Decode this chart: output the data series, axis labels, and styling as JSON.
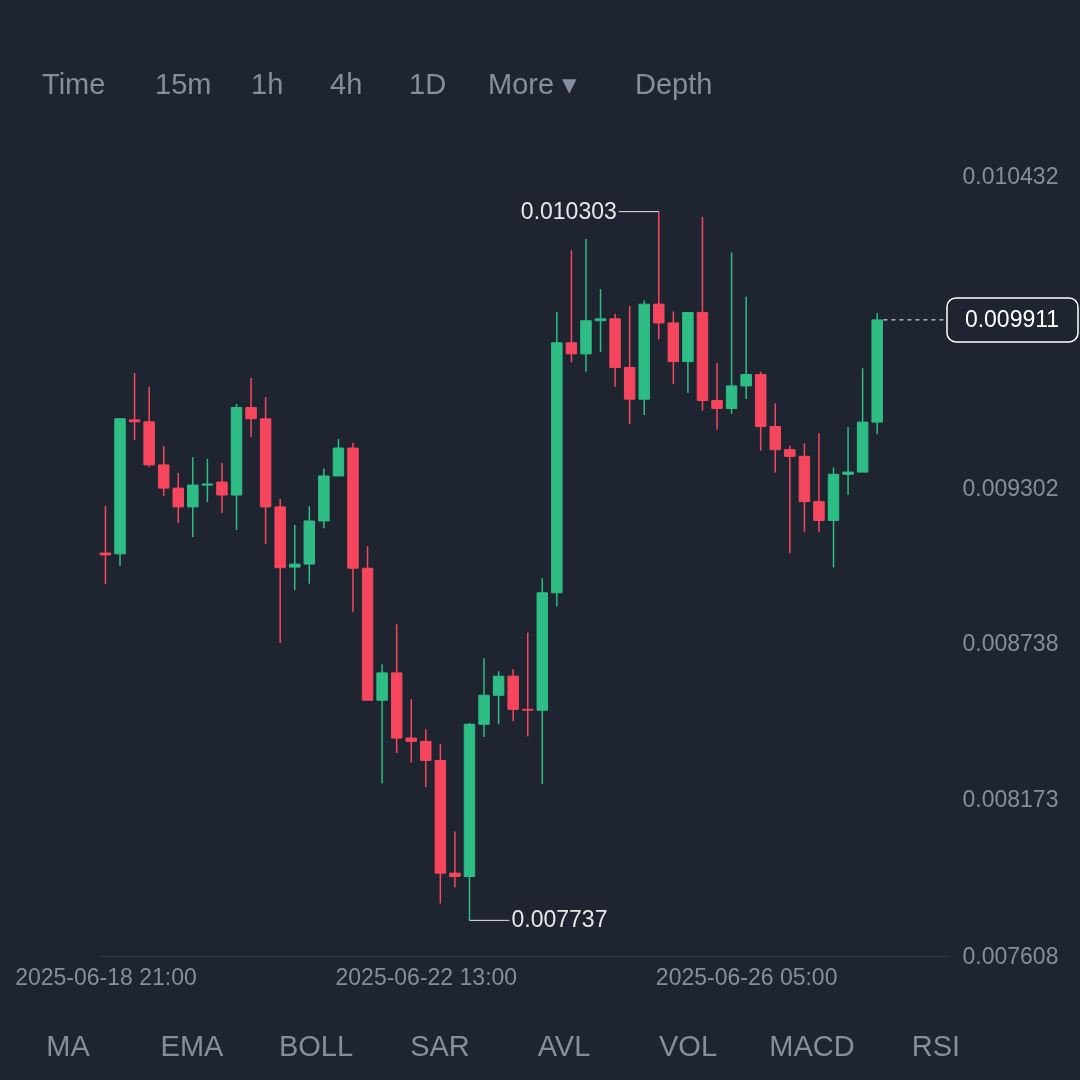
{
  "chart_data": [
    {
      "type": "other",
      "annotations": [
        "Time",
        "15m",
        "1h",
        "4h",
        "1D",
        "More ▾",
        "Depth"
      ]
    },
    {
      "type": "candlestick",
      "x": [
        "2025-06-18T21:00",
        "2025-06-19T01:00",
        "2025-06-19T05:00",
        "2025-06-19T09:00",
        "2025-06-19T13:00",
        "2025-06-19T17:00",
        "2025-06-19T21:00",
        "2025-06-20T01:00",
        "2025-06-20T05:00",
        "2025-06-20T09:00",
        "2025-06-20T13:00",
        "2025-06-20T17:00",
        "2025-06-20T21:00",
        "2025-06-21T01:00",
        "2025-06-21T05:00",
        "2025-06-21T09:00",
        "2025-06-21T13:00",
        "2025-06-21T17:00",
        "2025-06-21T21:00",
        "2025-06-22T01:00",
        "2025-06-22T05:00",
        "2025-06-22T09:00",
        "2025-06-22T13:00",
        "2025-06-22T17:00",
        "2025-06-22T21:00",
        "2025-06-23T01:00",
        "2025-06-23T05:00",
        "2025-06-23T09:00",
        "2025-06-23T13:00",
        "2025-06-23T17:00",
        "2025-06-23T21:00",
        "2025-06-24T01:00",
        "2025-06-24T05:00",
        "2025-06-24T09:00",
        "2025-06-24T13:00",
        "2025-06-24T17:00",
        "2025-06-24T21:00",
        "2025-06-25T01:00",
        "2025-06-25T05:00",
        "2025-06-25T09:00",
        "2025-06-25T13:00",
        "2025-06-25T17:00",
        "2025-06-25T21:00",
        "2025-06-26T01:00",
        "2025-06-26T05:00",
        "2025-06-26T09:00",
        "2025-06-26T13:00",
        "2025-06-26T17:00",
        "2025-06-26T21:00",
        "2025-06-27T01:00",
        "2025-06-27T05:00",
        "2025-06-27T09:00",
        "2025-06-27T13:00",
        "2025-06-27T17:00"
      ],
      "ohlc": [
        [
          0.009067,
          0.009237,
          0.008954,
          0.00906
        ],
        [
          0.009064,
          0.009553,
          0.00902,
          0.009553
        ],
        [
          0.009549,
          0.009719,
          0.009476,
          0.009542
        ],
        [
          0.009542,
          0.009669,
          0.009379,
          0.009386
        ],
        [
          0.009386,
          0.009455,
          0.009273,
          0.009302
        ],
        [
          0.009302,
          0.009357,
          0.009176,
          0.009234
        ],
        [
          0.009234,
          0.009415,
          0.009125,
          0.009313
        ],
        [
          0.009313,
          0.009408,
          0.009252,
          0.009317
        ],
        [
          0.009324,
          0.009393,
          0.009212,
          0.009277
        ],
        [
          0.009277,
          0.009607,
          0.00915,
          0.009594
        ],
        [
          0.009594,
          0.009701,
          0.009487,
          0.009553
        ],
        [
          0.009553,
          0.009632,
          0.009099,
          0.009234
        ],
        [
          0.009234,
          0.009263,
          0.008741,
          0.009014
        ],
        [
          0.009016,
          0.009168,
          0.008933,
          0.009027
        ],
        [
          0.009027,
          0.009237,
          0.008956,
          0.009183
        ],
        [
          0.009183,
          0.009373,
          0.009157,
          0.009346
        ],
        [
          0.009346,
          0.00948,
          0.009346,
          0.009447
        ],
        [
          0.009447,
          0.009466,
          0.008853,
          0.009012
        ],
        [
          0.009012,
          0.009092,
          0.008534,
          0.008534
        ],
        [
          0.008534,
          0.008664,
          0.008233,
          0.008633
        ],
        [
          0.008633,
          0.008809,
          0.008343,
          0.008397
        ],
        [
          0.008397,
          0.008538,
          0.008309,
          0.008385
        ],
        [
          0.008385,
          0.008429,
          0.00822,
          0.008316
        ],
        [
          0.008316,
          0.008375,
          0.007798,
          0.007908
        ],
        [
          0.007908,
          0.008059,
          0.007857,
          0.007896
        ],
        [
          0.007896,
          0.008452,
          0.007737,
          0.008447
        ],
        [
          0.008447,
          0.008686,
          0.008401,
          0.008552
        ],
        [
          0.008552,
          0.008639,
          0.008447,
          0.008621
        ],
        [
          0.008621,
          0.008646,
          0.008458,
          0.008501
        ],
        [
          0.008501,
          0.008779,
          0.008403,
          0.008498
        ],
        [
          0.008498,
          0.008976,
          0.00823,
          0.008923
        ],
        [
          0.008923,
          0.00994,
          0.008873,
          0.009828
        ],
        [
          0.009828,
          0.010163,
          0.009757,
          0.009788
        ],
        [
          0.009788,
          0.010204,
          0.009723,
          0.009908
        ],
        [
          0.009908,
          0.010022,
          0.009795,
          0.009915
        ],
        [
          0.009915,
          0.009933,
          0.009669,
          0.009739
        ],
        [
          0.009739,
          0.009961,
          0.009534,
          0.009624
        ],
        [
          0.009624,
          0.009981,
          0.009567,
          0.009968
        ],
        [
          0.009968,
          0.010303,
          0.00984,
          0.0099
        ],
        [
          0.0099,
          0.009942,
          0.009679,
          0.00976
        ],
        [
          0.00976,
          0.009938,
          0.009646,
          0.009938
        ],
        [
          0.009938,
          0.010284,
          0.009583,
          0.009619
        ],
        [
          0.009619,
          0.009755,
          0.009514,
          0.00959
        ],
        [
          0.00959,
          0.010155,
          0.009571,
          0.009672
        ],
        [
          0.009672,
          0.009995,
          0.009625,
          0.009713
        ],
        [
          0.009713,
          0.009723,
          0.009438,
          0.009525
        ],
        [
          0.009525,
          0.009609,
          0.009358,
          0.009441
        ],
        [
          0.009441,
          0.009455,
          0.009066,
          0.009417
        ],
        [
          0.009417,
          0.009464,
          0.009143,
          0.009253
        ],
        [
          0.009253,
          0.009501,
          0.009142,
          0.009185
        ],
        [
          0.009185,
          0.009377,
          0.009015,
          0.009352
        ],
        [
          0.009352,
          0.009522,
          0.009278,
          0.00936
        ],
        [
          0.00936,
          0.009736,
          0.00936,
          0.009541
        ],
        [
          0.009541,
          0.009936,
          0.009497,
          0.009911
        ]
      ],
      "colors": [
        "#f6465d",
        "#2ebd85",
        "#f6465d",
        "#f6465d",
        "#f6465d",
        "#f6465d",
        "#2ebd85",
        "#2ebd85",
        "#f6465d",
        "#2ebd85",
        "#f6465d",
        "#f6465d",
        "#f6465d",
        "#2ebd85",
        "#2ebd85",
        "#2ebd85",
        "#2ebd85",
        "#f6465d",
        "#f6465d",
        "#2ebd85",
        "#f6465d",
        "#f6465d",
        "#f6465d",
        "#f6465d",
        "#f6465d",
        "#2ebd85",
        "#2ebd85",
        "#2ebd85",
        "#f6465d",
        "#f6465d",
        "#2ebd85",
        "#2ebd85",
        "#f6465d",
        "#2ebd85",
        "#2ebd85",
        "#f6465d",
        "#f6465d",
        "#2ebd85",
        "#f6465d",
        "#f6465d",
        "#2ebd85",
        "#f6465d",
        "#f6465d",
        "#2ebd85",
        "#2ebd85",
        "#f6465d",
        "#f6465d",
        "#f6465d",
        "#f6465d",
        "#f6465d",
        "#2ebd85",
        "#2ebd85",
        "#2ebd85",
        "#2ebd85"
      ],
      "xlim": [
        "2025-06-18T19:30",
        "2025-06-28T13:00"
      ],
      "xticks": [
        {
          "value": "2025-06-18T21:00",
          "label": "2025-06-18 21:00"
        },
        {
          "value": "2025-06-22T13:00",
          "label": "2025-06-22 13:00"
        },
        {
          "value": "2025-06-26T05:00",
          "label": "2025-06-26 05:00"
        }
      ],
      "ylim": [
        0.007608,
        0.010432
      ],
      "yticks": [
        0.010432,
        0.009302,
        0.008738,
        0.008173,
        0.007608
      ],
      "annotations": [
        {
          "text": "0.010303",
          "x": "2025-06-25T05:00",
          "y": 0.010303
        },
        {
          "text": "0.007737",
          "x": "2025-06-23T01:00",
          "y": 0.007737
        }
      ],
      "ref_lines": [
        {
          "axis": "y",
          "value": 0.009911,
          "label": "0.009911",
          "line_style": "dashed",
          "color": "#ffffff"
        }
      ]
    },
    {
      "type": "other",
      "annotations": [
        "MA",
        "EMA",
        "BOLL",
        "SAR",
        "AVL",
        "VOL",
        "MACD",
        "RSI"
      ]
    }
  ]
}
